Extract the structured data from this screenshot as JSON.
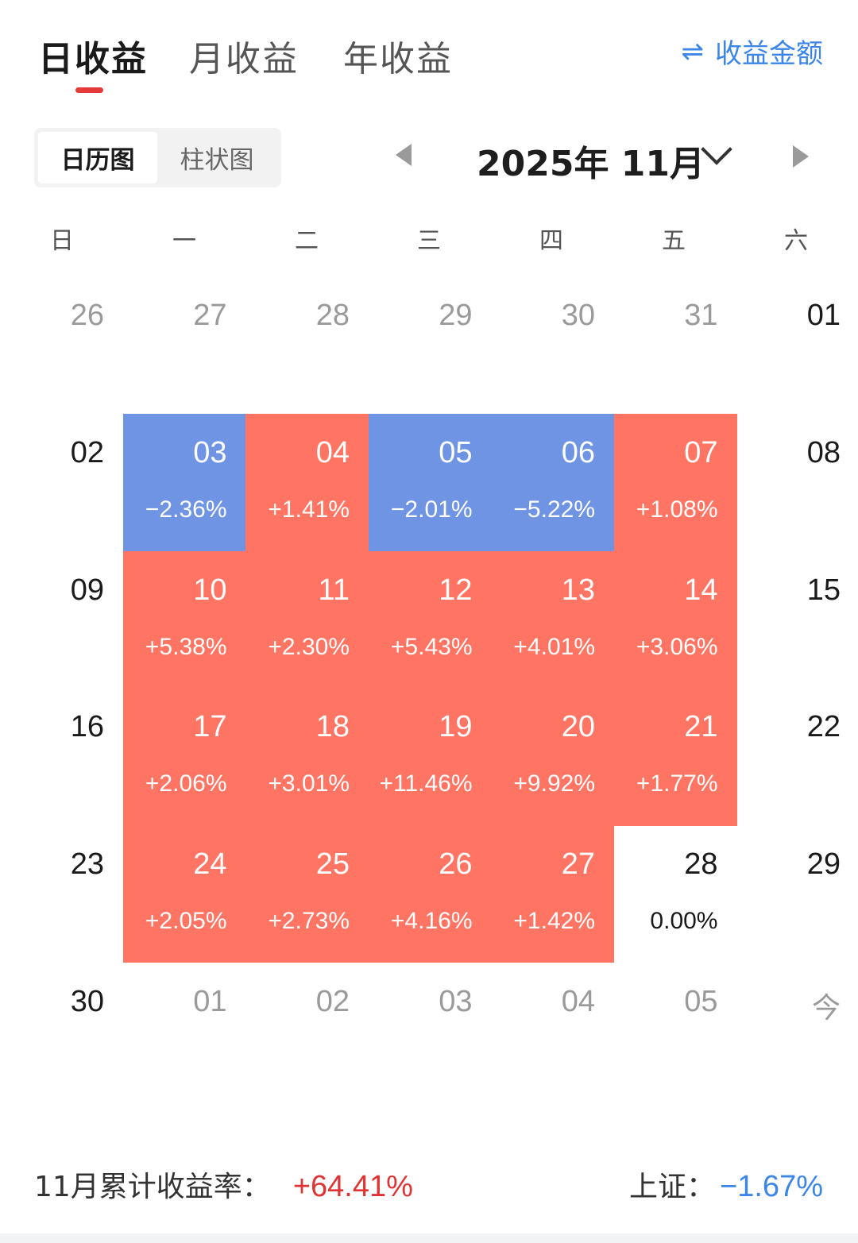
{
  "colors": {
    "up": "#ff7462",
    "down": "#7094e4",
    "accent_red": "#e63a3a",
    "accent_blue": "#3b86e8",
    "footer_red": "#e03434"
  },
  "tabs": [
    {
      "label": "日收益",
      "active": true
    },
    {
      "label": "月收益",
      "active": false
    },
    {
      "label": "年收益",
      "active": false
    }
  ],
  "switch": {
    "icon": "swap-arrows-icon",
    "glyph": "⇌",
    "label": "收益金额"
  },
  "view_toggle": [
    {
      "label": "日历图",
      "active": true
    },
    {
      "label": "柱状图",
      "active": false
    }
  ],
  "month_selector": {
    "title": "2025年 11月"
  },
  "weekdays": [
    "日",
    "一",
    "二",
    "三",
    "四",
    "五",
    "六"
  ],
  "weeks": [
    [
      {
        "day": "26",
        "kind": "other"
      },
      {
        "day": "27",
        "kind": "other"
      },
      {
        "day": "28",
        "kind": "other"
      },
      {
        "day": "29",
        "kind": "other"
      },
      {
        "day": "30",
        "kind": "other"
      },
      {
        "day": "31",
        "kind": "other"
      },
      {
        "day": "01",
        "kind": "cur"
      }
    ],
    [
      {
        "day": "02",
        "kind": "cur"
      },
      {
        "day": "03",
        "kind": "down",
        "pct": "−2.36%"
      },
      {
        "day": "04",
        "kind": "up",
        "pct": "+1.41%"
      },
      {
        "day": "05",
        "kind": "down",
        "pct": "−2.01%"
      },
      {
        "day": "06",
        "kind": "down",
        "pct": "−5.22%"
      },
      {
        "day": "07",
        "kind": "up",
        "pct": "+1.08%"
      },
      {
        "day": "08",
        "kind": "cur"
      }
    ],
    [
      {
        "day": "09",
        "kind": "cur"
      },
      {
        "day": "10",
        "kind": "up",
        "pct": "+5.38%"
      },
      {
        "day": "11",
        "kind": "up",
        "pct": "+2.30%"
      },
      {
        "day": "12",
        "kind": "up",
        "pct": "+5.43%"
      },
      {
        "day": "13",
        "kind": "up",
        "pct": "+4.01%"
      },
      {
        "day": "14",
        "kind": "up",
        "pct": "+3.06%"
      },
      {
        "day": "15",
        "kind": "cur"
      }
    ],
    [
      {
        "day": "16",
        "kind": "cur"
      },
      {
        "day": "17",
        "kind": "up",
        "pct": "+2.06%"
      },
      {
        "day": "18",
        "kind": "up",
        "pct": "+3.01%"
      },
      {
        "day": "19",
        "kind": "up",
        "pct": "+11.46%"
      },
      {
        "day": "20",
        "kind": "up",
        "pct": "+9.92%"
      },
      {
        "day": "21",
        "kind": "up",
        "pct": "+1.77%"
      },
      {
        "day": "22",
        "kind": "cur"
      }
    ],
    [
      {
        "day": "23",
        "kind": "cur"
      },
      {
        "day": "24",
        "kind": "up",
        "pct": "+2.05%"
      },
      {
        "day": "25",
        "kind": "up",
        "pct": "+2.73%"
      },
      {
        "day": "26",
        "kind": "up",
        "pct": "+4.16%"
      },
      {
        "day": "27",
        "kind": "up",
        "pct": "+1.42%"
      },
      {
        "day": "28",
        "kind": "cur",
        "pct": "0.00%"
      },
      {
        "day": "29",
        "kind": "cur"
      }
    ],
    [
      {
        "day": "30",
        "kind": "cur"
      },
      {
        "day": "01",
        "kind": "other"
      },
      {
        "day": "02",
        "kind": "other"
      },
      {
        "day": "03",
        "kind": "other"
      },
      {
        "day": "04",
        "kind": "other"
      },
      {
        "day": "05",
        "kind": "other"
      },
      {
        "day": "今",
        "kind": "other"
      }
    ]
  ],
  "footer": {
    "cumulative_label": "11月累计收益率：",
    "cumulative_value": "+64.41%",
    "index_label": "上证：",
    "index_value": "−1.67%"
  }
}
